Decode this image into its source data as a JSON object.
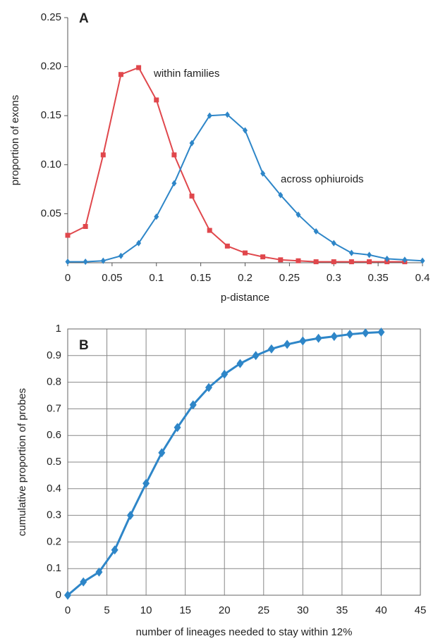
{
  "chart_data": [
    {
      "type": "line",
      "panel_label": "A",
      "xlabel": "p-distance",
      "ylabel": "proportion of exons",
      "x": [
        0,
        0.02,
        0.04,
        0.06,
        0.08,
        0.1,
        0.12,
        0.14,
        0.16,
        0.18,
        0.2,
        0.22,
        0.24,
        0.26,
        0.28,
        0.3,
        0.32,
        0.34,
        0.36,
        0.38,
        0.4
      ],
      "series": [
        {
          "name": "within families",
          "color": "#e0474c",
          "marker": "square",
          "values": [
            0.028,
            0.037,
            0.11,
            0.192,
            0.199,
            0.166,
            0.11,
            0.068,
            0.033,
            0.017,
            0.01,
            0.006,
            0.003,
            0.002,
            0.001,
            0.001,
            0.001,
            0.001,
            0.001,
            0.001,
            null
          ]
        },
        {
          "name": "across ophiuroids",
          "color": "#2e86c8",
          "marker": "diamond",
          "values": [
            0.001,
            0.001,
            0.002,
            0.007,
            0.02,
            0.047,
            0.081,
            0.122,
            0.15,
            0.151,
            0.135,
            0.091,
            0.069,
            0.049,
            0.032,
            0.02,
            0.01,
            0.008,
            0.004,
            0.003,
            0.002
          ]
        }
      ],
      "xlim": [
        0,
        0.4
      ],
      "xticks": [
        0,
        0.05,
        0.1,
        0.15,
        0.2,
        0.25,
        0.3,
        0.35,
        0.4
      ],
      "ylim": [
        0,
        0.25
      ],
      "yticks": [
        0.05,
        {
          "value": 0.1,
          "label": "0.10"
        },
        0.15,
        {
          "value": 0.2,
          "label": "0.20"
        },
        0.25
      ],
      "grid": false
    },
    {
      "type": "line",
      "panel_label": "B",
      "xlabel": "number of lineages needed to stay within 12%",
      "ylabel": "cumulative proportion of probes",
      "x": [
        0,
        2,
        4,
        6,
        8,
        10,
        12,
        14,
        16,
        18,
        20,
        22,
        24,
        26,
        28,
        30,
        32,
        34,
        36,
        38,
        40
      ],
      "series": [
        {
          "color": "#2e86c8",
          "marker": "diamond",
          "values": [
            0,
            0.05,
            0.087,
            0.17,
            0.3,
            0.42,
            0.535,
            0.63,
            0.715,
            0.78,
            0.83,
            0.87,
            0.9,
            0.925,
            0.942,
            0.955,
            0.965,
            0.972,
            0.98,
            0.985,
            0.988
          ]
        }
      ],
      "xlim": [
        0,
        45
      ],
      "xticks": [
        0,
        5,
        10,
        15,
        20,
        25,
        30,
        35,
        40,
        45
      ],
      "ylim": [
        0,
        1
      ],
      "yticks": [
        0,
        0.1,
        0.2,
        0.3,
        0.4,
        0.5,
        0.6,
        0.7,
        0.8,
        0.9,
        1
      ],
      "grid": true
    }
  ]
}
